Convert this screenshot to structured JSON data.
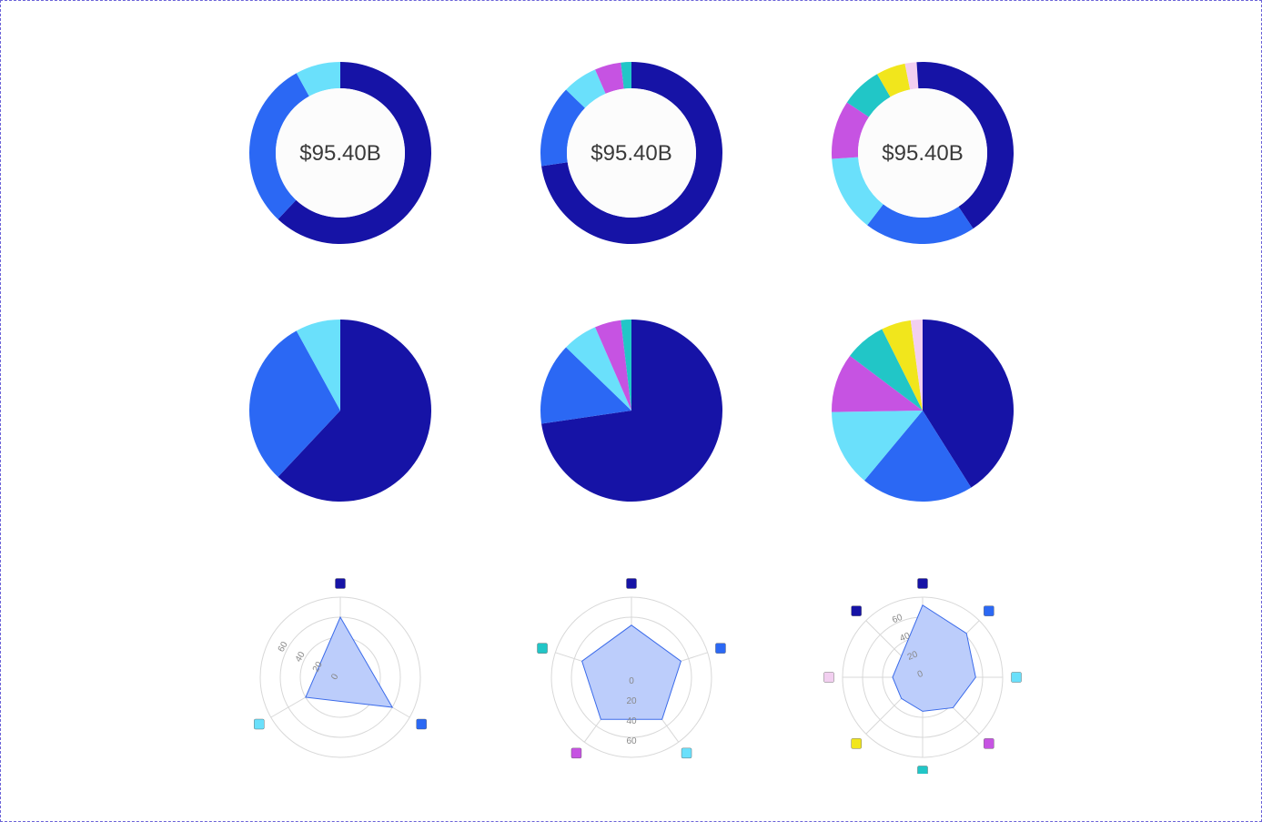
{
  "colors": {
    "palette": [
      "#1613a6",
      "#2b68f4",
      "#6ae0fb",
      "#c653e2",
      "#21c6c7",
      "#f1e61c",
      "#f2cff0"
    ],
    "radar_fill": "#bccdfb",
    "radar_stroke": "#3b6bea",
    "grid": "#d8d8d8"
  },
  "chart_data": [
    {
      "type": "pie",
      "variant": "donut",
      "center_label": "$95.40B",
      "values": [
        62,
        30,
        8
      ]
    },
    {
      "type": "pie",
      "variant": "donut",
      "center_label": "$95.40B",
      "values": [
        70,
        14,
        6,
        4.5,
        1.8
      ]
    },
    {
      "type": "pie",
      "variant": "donut",
      "center_label": "$95.40B",
      "values": [
        39,
        19,
        13,
        10,
        7,
        5,
        2,
        1
      ]
    },
    {
      "type": "pie",
      "values": [
        62,
        30,
        8
      ]
    },
    {
      "type": "pie",
      "values": [
        70,
        14,
        6,
        4.5,
        1.8
      ]
    },
    {
      "type": "pie",
      "values": [
        39,
        19,
        13,
        10,
        7,
        5,
        2
      ]
    },
    {
      "type": "radar",
      "axes": 3,
      "ticks": [
        "0",
        "20",
        "40",
        "60"
      ],
      "rmax": 80,
      "values": [
        60,
        60,
        40
      ]
    },
    {
      "type": "radar",
      "axes": 5,
      "ticks": [
        "0",
        "20",
        "40",
        "60"
      ],
      "rmax": 80,
      "values": [
        52,
        52,
        52,
        52,
        52
      ]
    },
    {
      "type": "radar",
      "axes": 8,
      "ticks": [
        "0",
        "20",
        "40",
        "60"
      ],
      "rmax": 80,
      "values": [
        72,
        62,
        53,
        43,
        34,
        30,
        30,
        30
      ]
    }
  ]
}
